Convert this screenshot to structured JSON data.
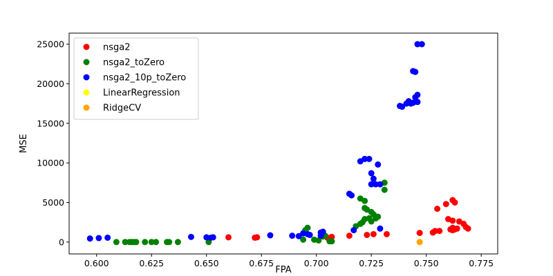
{
  "chart_data": {
    "type": "scatter",
    "title": "",
    "xlabel": "FPA",
    "ylabel": "MSE",
    "xlim": [
      0.5875,
      0.7825
    ],
    "ylim": [
      -1500,
      26400
    ],
    "xticks": [
      0.6,
      0.625,
      0.65,
      0.675,
      0.7,
      0.725,
      0.75,
      0.775
    ],
    "xtick_labels": [
      "0.600",
      "0.625",
      "0.650",
      "0.675",
      "0.700",
      "0.725",
      "0.750",
      "0.775"
    ],
    "yticks": [
      0,
      5000,
      10000,
      15000,
      20000,
      25000
    ],
    "ytick_labels": [
      "0",
      "5000",
      "10000",
      "15000",
      "20000",
      "25000"
    ],
    "grid": false,
    "legend_position": "upper-left",
    "series": [
      {
        "name": "nsga2",
        "color": "#ff0000",
        "points": [
          [
            0.66,
            600
          ],
          [
            0.672,
            550
          ],
          [
            0.673,
            600
          ],
          [
            0.705,
            550
          ],
          [
            0.707,
            650
          ],
          [
            0.715,
            800
          ],
          [
            0.723,
            900
          ],
          [
            0.726,
            1000
          ],
          [
            0.732,
            1000
          ],
          [
            0.747,
            1150
          ],
          [
            0.753,
            1200
          ],
          [
            0.754,
            1400
          ],
          [
            0.756,
            1400
          ],
          [
            0.755,
            4200
          ],
          [
            0.759,
            4800
          ],
          [
            0.76,
            2900
          ],
          [
            0.761,
            1600
          ],
          [
            0.762,
            1800
          ],
          [
            0.762,
            2700
          ],
          [
            0.762,
            5300
          ],
          [
            0.763,
            5000
          ],
          [
            0.763,
            1600
          ],
          [
            0.764,
            1700
          ],
          [
            0.765,
            2600
          ],
          [
            0.767,
            2300
          ],
          [
            0.768,
            1900
          ],
          [
            0.769,
            1700
          ],
          [
            0.762,
            1500
          ]
        ]
      },
      {
        "name": "nsga2_toZero",
        "color": "#008000",
        "points": [
          [
            0.609,
            0
          ],
          [
            0.613,
            0
          ],
          [
            0.615,
            0
          ],
          [
            0.616,
            0
          ],
          [
            0.617,
            0
          ],
          [
            0.618,
            0
          ],
          [
            0.622,
            0
          ],
          [
            0.625,
            0
          ],
          [
            0.627,
            0
          ],
          [
            0.632,
            0
          ],
          [
            0.633,
            0
          ],
          [
            0.637,
            0
          ],
          [
            0.651,
            0
          ],
          [
            0.694,
            300
          ],
          [
            0.695,
            1500
          ],
          [
            0.696,
            1800
          ],
          [
            0.699,
            300
          ],
          [
            0.701,
            200
          ],
          [
            0.703,
            700
          ],
          [
            0.704,
            800
          ],
          [
            0.706,
            100
          ],
          [
            0.707,
            100
          ],
          [
            0.718,
            2000
          ],
          [
            0.72,
            2300
          ],
          [
            0.72,
            5500
          ],
          [
            0.721,
            2500
          ],
          [
            0.722,
            2900
          ],
          [
            0.722,
            4300
          ],
          [
            0.722,
            5200
          ],
          [
            0.723,
            4100
          ],
          [
            0.724,
            3000
          ],
          [
            0.725,
            2600
          ],
          [
            0.725,
            3800
          ],
          [
            0.726,
            3500
          ],
          [
            0.727,
            3000
          ],
          [
            0.728,
            3200
          ],
          [
            0.731,
            7500
          ],
          [
            0.731,
            6600
          ]
        ]
      },
      {
        "name": "nsga2_10p_toZero",
        "color": "#0000ff",
        "points": [
          [
            0.597,
            450
          ],
          [
            0.601,
            500
          ],
          [
            0.605,
            550
          ],
          [
            0.643,
            650
          ],
          [
            0.65,
            600
          ],
          [
            0.652,
            550
          ],
          [
            0.653,
            600
          ],
          [
            0.679,
            850
          ],
          [
            0.689,
            800
          ],
          [
            0.692,
            750
          ],
          [
            0.694,
            1100
          ],
          [
            0.696,
            1000
          ],
          [
            0.697,
            900
          ],
          [
            0.702,
            800
          ],
          [
            0.702,
            1200
          ],
          [
            0.703,
            1300
          ],
          [
            0.715,
            6100
          ],
          [
            0.716,
            5900
          ],
          [
            0.717,
            1500
          ],
          [
            0.72,
            10200
          ],
          [
            0.722,
            10500
          ],
          [
            0.724,
            10500
          ],
          [
            0.725,
            8700
          ],
          [
            0.725,
            7300
          ],
          [
            0.726,
            8000
          ],
          [
            0.727,
            7300
          ],
          [
            0.728,
            9800
          ],
          [
            0.729,
            7300
          ],
          [
            0.729,
            1700
          ],
          [
            0.738,
            17200
          ],
          [
            0.739,
            17100
          ],
          [
            0.741,
            17500
          ],
          [
            0.742,
            17800
          ],
          [
            0.743,
            17500
          ],
          [
            0.744,
            17600
          ],
          [
            0.744,
            21600
          ],
          [
            0.745,
            21500
          ],
          [
            0.745,
            18300
          ],
          [
            0.746,
            18600
          ],
          [
            0.746,
            17700
          ],
          [
            0.746,
            25000
          ],
          [
            0.748,
            25000
          ]
        ]
      },
      {
        "name": "LinearRegression",
        "color": "#ffff00",
        "points": [
          [
            0.747,
            0
          ]
        ]
      },
      {
        "name": "RidgeCV",
        "color": "#ffa500",
        "points": [
          [
            0.747,
            0
          ]
        ]
      }
    ]
  }
}
